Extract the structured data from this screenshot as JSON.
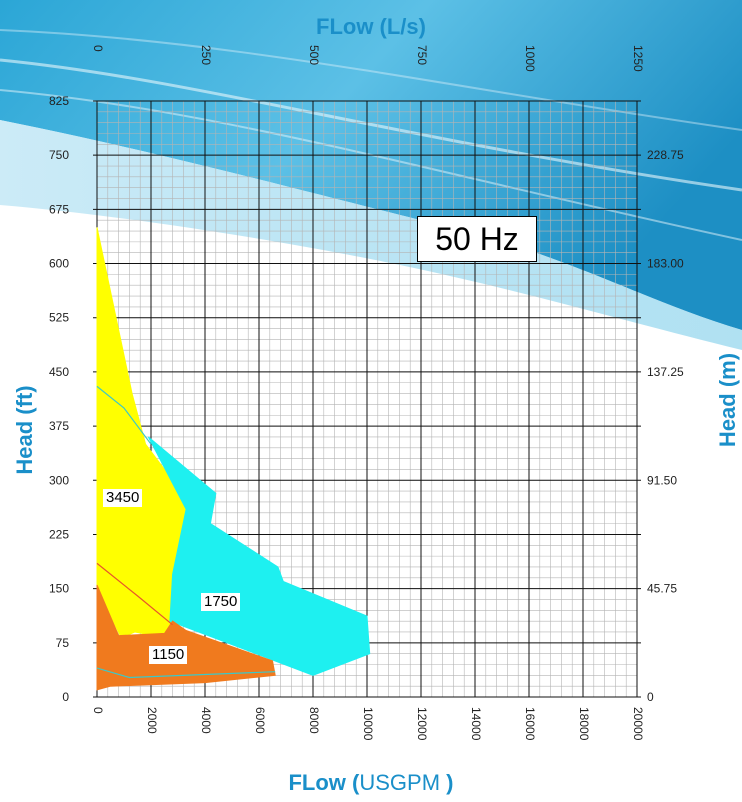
{
  "titles": {
    "top": "FLow (L/s)",
    "bottom_bold": "FLow (",
    "bottom_light": "USGPM",
    "bottom_end": " )",
    "left": "Head (ft)",
    "right": "Head (m)"
  },
  "frequency_label": "50 Hz",
  "colors": {
    "yellow": "#ffff00",
    "cyan": "#1ef0f0",
    "orange": "#f07a1e",
    "accent": "#1a8fc9"
  },
  "chart_data": {
    "type": "area",
    "x_axis_bottom": {
      "label": "FLow (USGPM )",
      "range": [
        0,
        20000
      ],
      "ticks": [
        "0",
        "2000",
        "4000",
        "6000",
        "8000",
        "10000",
        "12000",
        "14000",
        "16000",
        "18000",
        "20000"
      ]
    },
    "x_axis_top": {
      "label": "FLow (L/s)",
      "range": [
        0,
        1250
      ],
      "ticks": [
        "0",
        "250",
        "500",
        "750",
        "1000",
        "1250"
      ]
    },
    "y_axis_left": {
      "label": "Head (ft)",
      "range": [
        0,
        825
      ],
      "ticks": [
        "0",
        "75",
        "150",
        "225",
        "300",
        "375",
        "450",
        "525",
        "600",
        "675",
        "750",
        "825"
      ]
    },
    "y_axis_right": {
      "label": "Head (m)",
      "ticks": [
        "0",
        "45.75",
        "91.50",
        "137.25",
        "183.00",
        "228.75"
      ]
    },
    "grid": true,
    "series": [
      {
        "name": "3450",
        "color": "yellow",
        "polygon": [
          [
            0,
            650
          ],
          [
            1300,
            420
          ],
          [
            1800,
            350
          ],
          [
            3400,
            270
          ],
          [
            2800,
            80
          ],
          [
            1400,
            90
          ],
          [
            900,
            82
          ],
          [
            0,
            150
          ]
        ]
      },
      {
        "name": "1750",
        "color": "cyan",
        "polygon": [
          [
            1900,
            360
          ],
          [
            4400,
            282
          ],
          [
            4200,
            240
          ],
          [
            6700,
            180
          ],
          [
            6900,
            160
          ],
          [
            10000,
            112
          ],
          [
            10100,
            60
          ],
          [
            8000,
            30
          ],
          [
            2700,
            105
          ],
          [
            2800,
            170
          ],
          [
            3300,
            260
          ]
        ]
      },
      {
        "name": "1150",
        "color": "orange",
        "polygon": [
          [
            0,
            155
          ],
          [
            800,
            85
          ],
          [
            2500,
            88
          ],
          [
            2800,
            105
          ],
          [
            3300,
            92
          ],
          [
            6500,
            50
          ],
          [
            6600,
            30
          ],
          [
            4000,
            20
          ],
          [
            500,
            15
          ],
          [
            0,
            10
          ]
        ]
      }
    ],
    "lines": [
      {
        "color": "cyan",
        "points": [
          [
            0,
            430
          ],
          [
            1000,
            400
          ],
          [
            2000,
            350
          ]
        ]
      },
      {
        "color": "orange",
        "points": [
          [
            0,
            185
          ],
          [
            1500,
            140
          ],
          [
            2800,
            100
          ]
        ]
      },
      {
        "color": "cyan",
        "points": [
          [
            0,
            40
          ],
          [
            1200,
            27
          ],
          [
            6600,
            35
          ]
        ]
      }
    ],
    "annotations": [
      "50 Hz",
      "3450",
      "1750",
      "1150"
    ]
  }
}
